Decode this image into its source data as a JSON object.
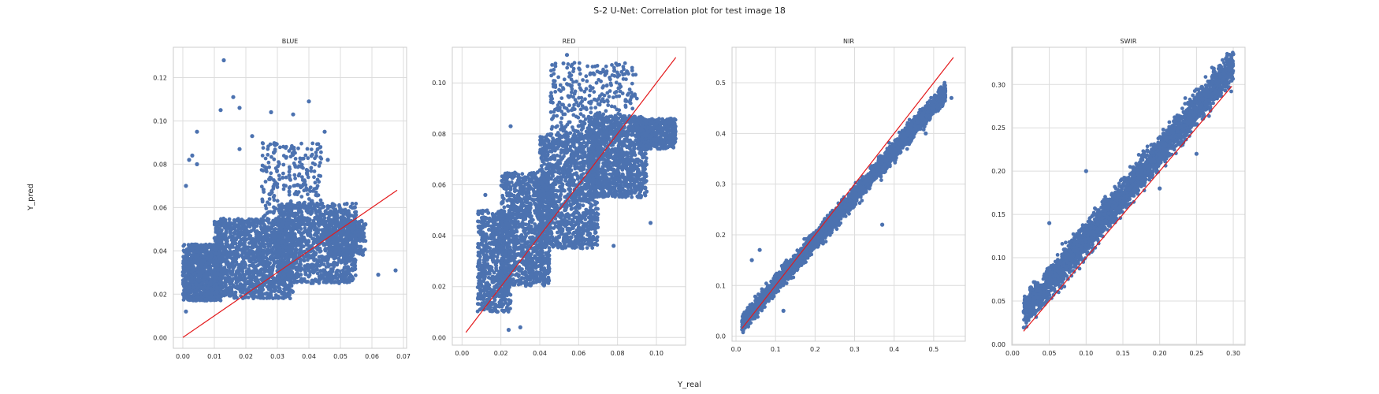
{
  "figure": {
    "title": "S-2 U-Net: Correlation plot for test image 18",
    "xlabel": "Y_real",
    "ylabel": "Y_pred"
  },
  "colors": {
    "points": "#4c72b0",
    "fit_line": "#e41a1c",
    "grid": "#dcdcdc"
  },
  "chart_data": [
    {
      "type": "scatter",
      "title": "BLUE",
      "grid": true,
      "xlim": [
        -0.003,
        0.071
      ],
      "ylim": [
        -0.005,
        0.134
      ],
      "xticks": [
        0.0,
        0.01,
        0.02,
        0.03,
        0.04,
        0.05,
        0.06,
        0.07
      ],
      "xtick_labels": [
        "0.00",
        "0.01",
        "0.02",
        "0.03",
        "0.04",
        "0.05",
        "0.06",
        "0.07"
      ],
      "yticks": [
        0.0,
        0.02,
        0.04,
        0.06,
        0.08,
        0.1,
        0.12
      ],
      "ytick_labels": [
        "0.00",
        "0.02",
        "0.04",
        "0.06",
        "0.08",
        "0.10",
        "0.12"
      ],
      "identity_line": [
        [
          0.0,
          0.0
        ],
        [
          0.068,
          0.068
        ]
      ],
      "cloud": [
        {
          "x": [
            0.0,
            0.012
          ],
          "y": [
            0.017,
            0.043
          ],
          "n": 900
        },
        {
          "x": [
            0.01,
            0.035
          ],
          "y": [
            0.018,
            0.055
          ],
          "n": 1400
        },
        {
          "x": [
            0.03,
            0.055
          ],
          "y": [
            0.025,
            0.062
          ],
          "n": 1200
        },
        {
          "x": [
            0.045,
            0.058
          ],
          "y": [
            0.038,
            0.054
          ],
          "n": 300
        },
        {
          "x": [
            0.025,
            0.044
          ],
          "y": [
            0.055,
            0.09
          ],
          "n": 260
        }
      ],
      "outliers": [
        {
          "x": 0.013,
          "y": 0.128
        },
        {
          "x": 0.016,
          "y": 0.111
        },
        {
          "x": 0.018,
          "y": 0.106
        },
        {
          "x": 0.0045,
          "y": 0.095
        },
        {
          "x": 0.028,
          "y": 0.104
        },
        {
          "x": 0.04,
          "y": 0.109
        },
        {
          "x": 0.022,
          "y": 0.093
        },
        {
          "x": 0.035,
          "y": 0.103
        },
        {
          "x": 0.012,
          "y": 0.105
        },
        {
          "x": 0.002,
          "y": 0.082
        },
        {
          "x": 0.003,
          "y": 0.084
        },
        {
          "x": 0.0045,
          "y": 0.08
        },
        {
          "x": 0.046,
          "y": 0.082
        },
        {
          "x": 0.045,
          "y": 0.095
        },
        {
          "x": 0.0675,
          "y": 0.031
        },
        {
          "x": 0.062,
          "y": 0.029
        },
        {
          "x": 0.001,
          "y": 0.07
        },
        {
          "x": 0.001,
          "y": 0.012
        },
        {
          "x": 0.018,
          "y": 0.087
        }
      ]
    },
    {
      "type": "scatter",
      "title": "RED",
      "grid": true,
      "xlim": [
        -0.005,
        0.115
      ],
      "ylim": [
        -0.003,
        0.114
      ],
      "xticks": [
        0.0,
        0.02,
        0.04,
        0.06,
        0.08,
        0.1
      ],
      "xtick_labels": [
        "0.00",
        "0.02",
        "0.04",
        "0.06",
        "0.08",
        "0.10"
      ],
      "yticks": [
        0.0,
        0.02,
        0.04,
        0.06,
        0.08,
        0.1
      ],
      "ytick_labels": [
        "0.00",
        "0.02",
        "0.04",
        "0.06",
        "0.08",
        "0.10"
      ],
      "identity_line": [
        [
          0.002,
          0.002
        ],
        [
          0.11,
          0.11
        ]
      ],
      "cloud": [
        {
          "x": [
            0.008,
            0.025
          ],
          "y": [
            0.01,
            0.05
          ],
          "n": 700
        },
        {
          "x": [
            0.02,
            0.045
          ],
          "y": [
            0.02,
            0.065
          ],
          "n": 1100
        },
        {
          "x": [
            0.04,
            0.07
          ],
          "y": [
            0.035,
            0.08
          ],
          "n": 1300
        },
        {
          "x": [
            0.065,
            0.095
          ],
          "y": [
            0.055,
            0.087
          ],
          "n": 1100
        },
        {
          "x": [
            0.09,
            0.11
          ],
          "y": [
            0.074,
            0.086
          ],
          "n": 500
        },
        {
          "x": [
            0.045,
            0.09
          ],
          "y": [
            0.08,
            0.108
          ],
          "n": 350
        }
      ],
      "outliers": [
        {
          "x": 0.054,
          "y": 0.111
        },
        {
          "x": 0.025,
          "y": 0.083
        },
        {
          "x": 0.078,
          "y": 0.036
        },
        {
          "x": 0.012,
          "y": 0.056
        },
        {
          "x": 0.03,
          "y": 0.004
        },
        {
          "x": 0.024,
          "y": 0.003
        },
        {
          "x": 0.097,
          "y": 0.045
        },
        {
          "x": 0.011,
          "y": 0.045
        }
      ]
    },
    {
      "type": "scatter",
      "title": "NIR",
      "grid": true,
      "xlim": [
        -0.01,
        0.58
      ],
      "ylim": [
        -0.01,
        0.57
      ],
      "xticks": [
        0.0,
        0.1,
        0.2,
        0.3,
        0.4,
        0.5
      ],
      "xtick_labels": [
        "0.0",
        "0.1",
        "0.2",
        "0.3",
        "0.4",
        "0.5"
      ],
      "yticks": [
        0.0,
        0.1,
        0.2,
        0.3,
        0.4,
        0.5
      ],
      "ytick_labels": [
        "0.0",
        "0.1",
        "0.2",
        "0.3",
        "0.4",
        "0.5"
      ],
      "identity_line": [
        [
          0.015,
          0.015
        ],
        [
          0.55,
          0.55
        ]
      ],
      "band": {
        "x": [
          0.015,
          0.53
        ],
        "slope": 0.885,
        "intercept": 0.012,
        "width": 0.045,
        "n": 3000
      },
      "outliers": [
        {
          "x": 0.04,
          "y": 0.15
        },
        {
          "x": 0.06,
          "y": 0.17
        },
        {
          "x": 0.37,
          "y": 0.22
        },
        {
          "x": 0.48,
          "y": 0.4
        },
        {
          "x": 0.545,
          "y": 0.47
        },
        {
          "x": 0.12,
          "y": 0.05
        }
      ]
    },
    {
      "type": "scatter",
      "title": "SWIR",
      "grid": true,
      "xlim": [
        -0.001,
        0.316
      ],
      "ylim": [
        -0.001,
        0.343
      ],
      "xticks": [
        0.0,
        0.05,
        0.1,
        0.15,
        0.2,
        0.25,
        0.3
      ],
      "xtick_labels": [
        "0.00",
        "0.05",
        "0.10",
        "0.15",
        "0.20",
        "0.25",
        "0.30"
      ],
      "yticks": [
        0.0,
        0.05,
        0.1,
        0.15,
        0.2,
        0.25,
        0.3
      ],
      "ytick_labels": [
        "0.00",
        "0.05",
        "0.10",
        "0.15",
        "0.20",
        "0.25",
        "0.30"
      ],
      "identity_line": [
        [
          0.015,
          0.015
        ],
        [
          0.298,
          0.298
        ]
      ],
      "band": {
        "x": [
          0.015,
          0.3
        ],
        "slope": 1.0,
        "intercept": 0.022,
        "width": 0.045,
        "n": 3000
      },
      "outliers": [
        {
          "x": 0.2,
          "y": 0.18
        },
        {
          "x": 0.05,
          "y": 0.14
        },
        {
          "x": 0.1,
          "y": 0.2
        },
        {
          "x": 0.25,
          "y": 0.22
        },
        {
          "x": 0.29,
          "y": 0.33
        },
        {
          "x": 0.3,
          "y": 0.335
        }
      ]
    }
  ]
}
